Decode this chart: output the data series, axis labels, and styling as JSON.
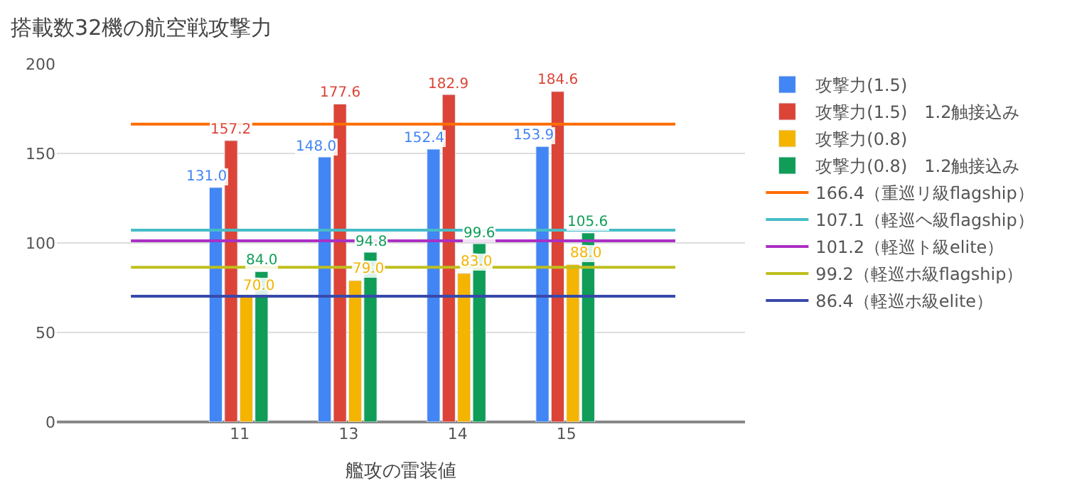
{
  "chart_data": {
    "type": "bar",
    "title": "搭載数32機の航空戦攻撃力",
    "xlabel": "艦攻の雷装値",
    "categories": [
      null,
      "11",
      "13",
      "14",
      "15",
      null
    ],
    "series": [
      {
        "name": "攻撃力(1.5)",
        "color": "#4285f4",
        "values": [
          null,
          131.0,
          148.0,
          152.4,
          153.9,
          null
        ],
        "value_labels": [
          null,
          "131.0",
          "148.0",
          "152.4",
          "153.9",
          null
        ]
      },
      {
        "name": "攻撃力(1.5)　1.2触接込み",
        "color": "#db4437",
        "values": [
          null,
          157.2,
          177.6,
          182.9,
          184.6,
          null
        ],
        "value_labels": [
          null,
          "157.2",
          "177.6",
          "182.9",
          "184.6",
          null
        ]
      },
      {
        "name": "攻撃力(0.8)",
        "color": "#f4b400",
        "values": [
          null,
          70.0,
          79.0,
          83.0,
          88.0,
          null
        ],
        "value_labels": [
          null,
          "70.0",
          "79.0",
          "83.0",
          "88.0",
          null
        ]
      },
      {
        "name": "攻撃力(0.8)　1.2触接込み",
        "color": "#0f9d58",
        "values": [
          null,
          84.0,
          94.8,
          99.6,
          105.6,
          null
        ],
        "value_labels": [
          null,
          "84.0",
          "94.8",
          "99.6",
          "105.6",
          null
        ]
      },
      {
        "name": "166.4（重巡リ級flagship）",
        "type": "line",
        "color": "#ff6d01",
        "values": [
          166.4,
          166.4,
          166.4,
          166.4,
          166.4,
          166.4
        ]
      },
      {
        "name": "107.1（軽巡ヘ級flagship）",
        "type": "line",
        "color": "#46bdc6",
        "values": [
          107.1,
          107.1,
          107.1,
          107.1,
          107.1,
          107.1
        ]
      },
      {
        "name": "101.2（軽巡ト級elite）",
        "type": "line",
        "color": "#ab30c4",
        "values": [
          101.2,
          101.2,
          101.2,
          101.2,
          101.2,
          101.2
        ]
      },
      {
        "name": "99.2（軽巡ホ級flagship）",
        "type": "line",
        "color": "#bfbf1e",
        "values": [
          86.4,
          86.4,
          86.4,
          86.4,
          86.4,
          86.4
        ]
      },
      {
        "name": "86.4（軽巡ホ級elite）",
        "type": "line",
        "color": "#3949ab",
        "values": [
          70.2,
          70.2,
          70.2,
          70.2,
          70.2,
          70.2
        ]
      }
    ],
    "ylim": [
      0,
      200
    ],
    "yticks": [
      0,
      50,
      100,
      150,
      200
    ],
    "grid": "y",
    "legend": "right"
  }
}
